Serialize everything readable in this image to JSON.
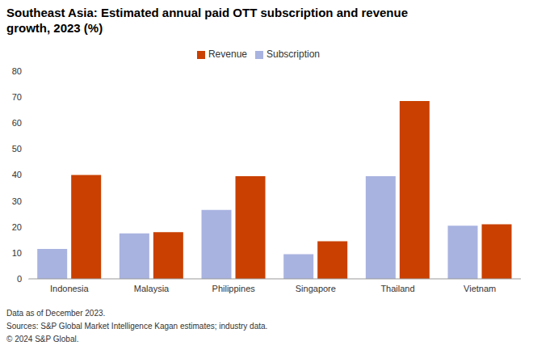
{
  "chart_data": {
    "type": "bar",
    "title": "Southeast Asia: Estimated annual paid OTT subscription and revenue growth, 2023 (%)",
    "categories": [
      "Indonesia",
      "Malaysia",
      "Philippines",
      "Singapore",
      "Thailand",
      "Vietnam"
    ],
    "series": [
      {
        "name": "Subscription",
        "color": "#a9b3e0",
        "values": [
          11.5,
          17.5,
          26.5,
          9.5,
          39.5,
          20.5
        ]
      },
      {
        "name": "Revenue",
        "color": "#c94000",
        "values": [
          40,
          18,
          39.5,
          14.5,
          68.5,
          21
        ]
      }
    ],
    "ylim": [
      0,
      80
    ],
    "yticks": [
      0,
      10,
      20,
      30,
      40,
      50,
      60,
      70,
      80
    ],
    "grid": false,
    "legend": "top",
    "notes": [
      "Data as of December 2023.",
      "Sources: S&P Global Market Intelligence Kagan estimates; industry data.",
      "© 2024 S&P Global."
    ]
  }
}
